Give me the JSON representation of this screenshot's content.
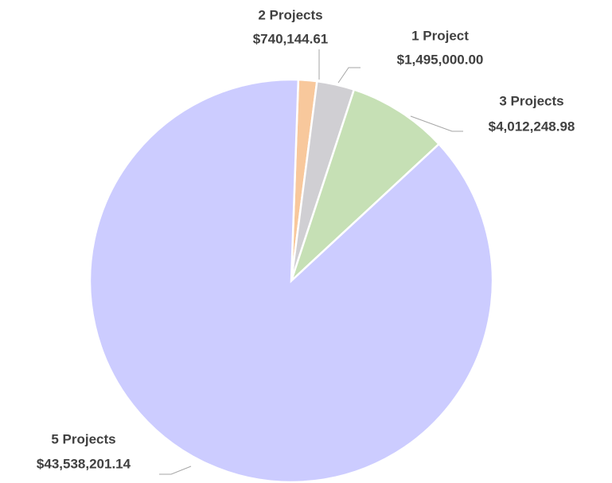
{
  "chart_data": {
    "type": "pie",
    "categories": [
      "2 Projects",
      "1 Project",
      "3 Projects",
      "5 Projects"
    ],
    "values": [
      740144.61,
      1495000.0,
      4012248.98,
      43538201.14
    ],
    "value_labels": [
      "$740,144.61",
      "$1,495,000.00",
      "$4,012,248.98",
      "$43,538,201.14"
    ],
    "colors": [
      "#f8c89c",
      "#d0cfd3",
      "#c6e0b5",
      "#ccccff"
    ]
  }
}
